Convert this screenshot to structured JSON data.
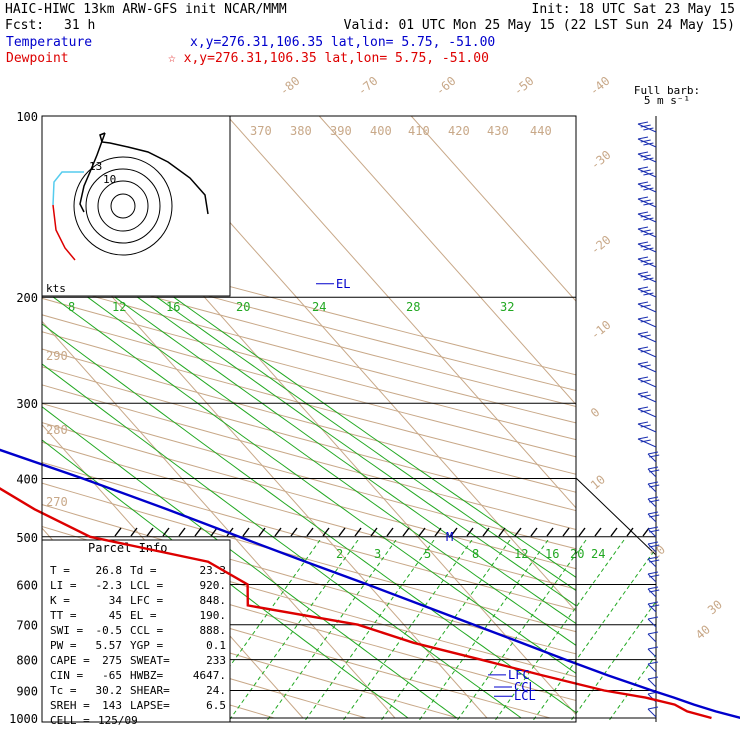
{
  "header": {
    "title": "HAIC-HIWC 13km ARW-GFS init   NCAR/MMM",
    "init": "Init: 18 UTC Sat 23 May 15",
    "fcst_label": "Fcst:",
    "fcst_value": "31 h",
    "valid": "Valid: 01 UTC Mon 25 May 15 (22 LST Sun 24 May 15)",
    "temp_label": "Temperature",
    "temp_info": "x,y=276.31,106.35   lat,lon=  5.75, -51.00",
    "dew_label": "Dewpoint",
    "dew_info": "☆ x,y=276.31,106.35   lat,lon=  5.75, -51.00"
  },
  "colors": {
    "temperature": "#0000cc",
    "dewpoint": "#dd0000",
    "isotherm": "#c8a888",
    "mixing_ratio": "#22a822",
    "grid": "#000000"
  },
  "barb_legend": {
    "line1": "Full barb:",
    "line2": "5 m s⁻¹"
  },
  "hodograph": {
    "axis_label": "kts",
    "ring_labels": [
      "13",
      "10"
    ]
  },
  "chart_data": {
    "type": "line",
    "pressure_levels": [
      100,
      200,
      300,
      400,
      500,
      600,
      700,
      800,
      900,
      1000
    ],
    "isotherm_labels": [
      "-80",
      "-70",
      "-60",
      "-50",
      "-40",
      "-30",
      "-20",
      "-10",
      "0",
      "10",
      "20",
      "30",
      "40"
    ],
    "theta_labels": [
      "370",
      "380",
      "390",
      "400",
      "410",
      "420",
      "430",
      "440",
      "290",
      "280",
      "270"
    ],
    "mixing_ratio_labels_upper": [
      "8",
      "12",
      "16",
      "20",
      "24",
      "28",
      "32"
    ],
    "mixing_ratio_labels_lower": [
      "2",
      "3",
      "5",
      "8",
      "12",
      "16",
      "20",
      "24"
    ],
    "series": [
      {
        "name": "Temperature",
        "p": [
          1000,
          975,
          950,
          925,
          900,
          850,
          800,
          750,
          700,
          650,
          600,
          550,
          500,
          450,
          400,
          350,
          300,
          250,
          200,
          170,
          150,
          130,
          110,
          100
        ],
        "t": [
          27.6,
          25.5,
          23.8,
          22.3,
          20.6,
          17.3,
          14.2,
          11.0,
          7.6,
          3.9,
          -0.1,
          -4.6,
          -9.4,
          -14.6,
          -20.8,
          -28.4,
          -37.1,
          -47.0,
          -58.7,
          -66.2,
          -71.6,
          -77.5,
          -83.4,
          -86.5
        ]
      },
      {
        "name": "Dewpoint",
        "p": [
          1000,
          975,
          950,
          925,
          900,
          850,
          800,
          750,
          700,
          650,
          600,
          550,
          500,
          450,
          400,
          350,
          300,
          250,
          200,
          170,
          150,
          130,
          110,
          100
        ],
        "t": [
          24.4,
          22.4,
          21.7,
          19.2,
          15.4,
          10.2,
          5.0,
          -0.7,
          -5.0,
          -15.1,
          -13.1,
          -15.2,
          -25.6,
          -29.0,
          -31.6,
          -42.0,
          -49.5,
          -61.4,
          -73.7,
          -80.2,
          -81.8,
          -88.0,
          -99.0,
          -101.5
        ]
      }
    ],
    "annotations": [
      {
        "label": "EL",
        "p": 190
      },
      {
        "label": "M",
        "p": 500
      },
      {
        "label": "LFC",
        "p": 848
      },
      {
        "label": "CCL",
        "p": 888
      },
      {
        "label": "LCL",
        "p": 920
      }
    ]
  },
  "parcel_info": {
    "title": "Parcel Info",
    "rows": [
      [
        "T  =",
        "26.8",
        "Td =",
        "23.3"
      ],
      [
        "LI =",
        "-2.3",
        "LCL =",
        "920."
      ],
      [
        "K  =",
        "34",
        "LFC =",
        "848."
      ],
      [
        "TT =",
        "45",
        "EL =",
        "190."
      ],
      [
        "SWI =",
        "-0.5",
        "CCL =",
        "888."
      ],
      [
        "PW =",
        "5.57",
        "YGP =",
        "0.1"
      ],
      [
        "CAPE =",
        "275",
        "SWEAT=",
        "233"
      ],
      [
        "CIN =",
        "-65",
        "HWBZ=",
        "4647."
      ],
      [
        "Tc =",
        "30.2",
        "SHEAR=",
        "24."
      ],
      [
        "SREH =",
        "143",
        "LAPSE=",
        "6.5"
      ],
      [
        "CELL =",
        "125/09",
        "",
        ""
      ]
    ]
  }
}
